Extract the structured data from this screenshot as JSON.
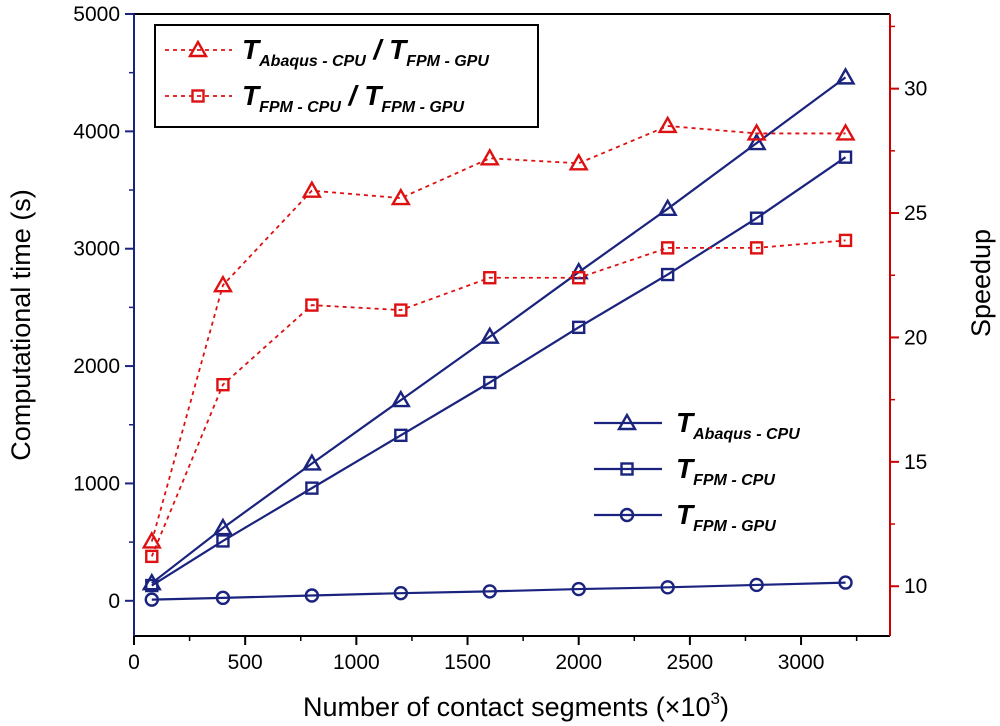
{
  "colors": {
    "left_axis": "#1a237e",
    "right_axis": "#cc0000",
    "blue_series": "#1a237e",
    "red_series": "#dd1111",
    "frame": "#000000"
  },
  "chart_data": {
    "type": "line",
    "xlabel_text": "Number of contact segments (×10",
    "xlabel_sup": "3",
    "xlabel_close": ")",
    "ylabel": "Computational time (s)",
    "y2label": "Speedup",
    "xlim": [
      0,
      3400
    ],
    "ylim": [
      -300,
      5000
    ],
    "y2lim": [
      8,
      33
    ],
    "xticks": [
      0,
      500,
      1000,
      1500,
      2000,
      2500,
      3000
    ],
    "yticks": [
      0,
      1000,
      2000,
      3000,
      4000,
      5000
    ],
    "y2ticks": [
      10,
      15,
      20,
      25,
      30
    ],
    "grid": false,
    "x": [
      80,
      400,
      800,
      1200,
      1600,
      2000,
      2400,
      2800,
      3200
    ],
    "series": [
      {
        "id": "abaqus_cpu",
        "axis": "left",
        "marker": "triangle",
        "line": "solid",
        "color": "#1a237e",
        "values": [
          150,
          620,
          1170,
          1710,
          2250,
          2800,
          3340,
          3900,
          4460
        ]
      },
      {
        "id": "fpm_cpu",
        "axis": "left",
        "marker": "square",
        "line": "solid",
        "color": "#1a237e",
        "values": [
          130,
          510,
          960,
          1410,
          1860,
          2330,
          2780,
          3260,
          3780
        ]
      },
      {
        "id": "fpm_gpu",
        "axis": "left",
        "marker": "circle",
        "line": "solid",
        "color": "#1a237e",
        "values": [
          10,
          25,
          45,
          65,
          80,
          100,
          115,
          135,
          155
        ]
      },
      {
        "id": "speedup_abaqus",
        "axis": "right",
        "marker": "triangle",
        "line": "dotted",
        "color": "#dd1111",
        "values": [
          11.8,
          22.1,
          25.9,
          25.6,
          27.2,
          27.0,
          28.5,
          28.2,
          28.2
        ]
      },
      {
        "id": "speedup_fpm",
        "axis": "right",
        "marker": "square",
        "line": "dotted",
        "color": "#dd1111",
        "values": [
          11.2,
          18.1,
          21.3,
          21.1,
          22.4,
          22.4,
          23.6,
          23.6,
          23.9
        ]
      }
    ],
    "legend_top": {
      "placement": "top-left",
      "entries": [
        {
          "series": "speedup_abaqus",
          "num_T": "T",
          "num_sub": "Abaqus - CPU",
          "slash": " / ",
          "den_T": "T",
          "den_sub": "FPM - GPU"
        },
        {
          "series": "speedup_fpm",
          "num_T": "T",
          "num_sub": "FPM - CPU",
          "slash": " / ",
          "den_T": "T",
          "den_sub": "FPM - GPU"
        }
      ]
    },
    "legend_bottom": {
      "placement": "bottom-right",
      "entries": [
        {
          "series": "abaqus_cpu",
          "T": "T",
          "sub": "Abaqus - CPU"
        },
        {
          "series": "fpm_cpu",
          "T": "T",
          "sub": "FPM - CPU"
        },
        {
          "series": "fpm_gpu",
          "T": "T",
          "sub": "FPM - GPU"
        }
      ]
    }
  }
}
